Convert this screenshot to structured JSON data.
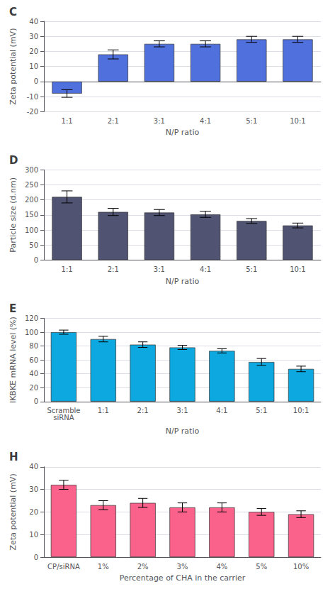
{
  "chart_data": [
    {
      "type": "bar",
      "title": "C",
      "categories": [
        "1:1",
        "2:1",
        "3:1",
        "4:1",
        "5:1",
        "10:1"
      ],
      "values": [
        -8,
        18,
        25,
        25,
        28,
        28
      ],
      "errors": [
        2.5,
        3,
        2,
        2,
        2,
        2
      ],
      "xlabel": "N/P ratio",
      "ylabel": "Zeta potential (mV)",
      "ylim": [
        -20,
        40
      ],
      "yticks": [
        -20,
        -10,
        0,
        10,
        20,
        30,
        40
      ]
    },
    {
      "type": "bar",
      "title": "D",
      "categories": [
        "1:1",
        "2:1",
        "3:1",
        "4:1",
        "5:1",
        "10:1"
      ],
      "values": [
        210,
        160,
        158,
        152,
        130,
        115
      ],
      "errors": [
        20,
        12,
        10,
        10,
        8,
        8
      ],
      "xlabel": "N/P ratio",
      "ylabel": "Particle size (d.nm)",
      "ylim": [
        0,
        300
      ],
      "yticks": [
        0,
        50,
        100,
        150,
        200,
        250,
        300
      ]
    },
    {
      "type": "bar",
      "title": "E",
      "categories": [
        "Scramble\nsiRNA",
        "1:1",
        "2:1",
        "3:1",
        "4:1",
        "5:1",
        "10:1"
      ],
      "values": [
        100,
        90,
        82,
        78,
        73,
        57,
        47
      ],
      "errors": [
        3,
        4,
        4,
        3,
        3,
        5,
        4
      ],
      "xlabel": "N/P ratio",
      "ylabel": "IKBKE mRNA level (%)",
      "ylim": [
        0,
        120
      ],
      "yticks": [
        0,
        20,
        40,
        60,
        80,
        100,
        120
      ]
    },
    {
      "type": "bar",
      "title": "H",
      "categories": [
        "CP/siRNA",
        "1%",
        "2%",
        "3%",
        "4%",
        "5%",
        "10%"
      ],
      "values": [
        32,
        23,
        24,
        22,
        22,
        20,
        19
      ],
      "errors": [
        2,
        2,
        2,
        2,
        2,
        1.5,
        1.5
      ],
      "xlabel": "Percentage of CHA in the carrier",
      "ylabel": "Zeta potential (mV)",
      "ylim": [
        0,
        40
      ],
      "yticks": [
        0,
        10,
        20,
        30,
        40
      ]
    }
  ]
}
